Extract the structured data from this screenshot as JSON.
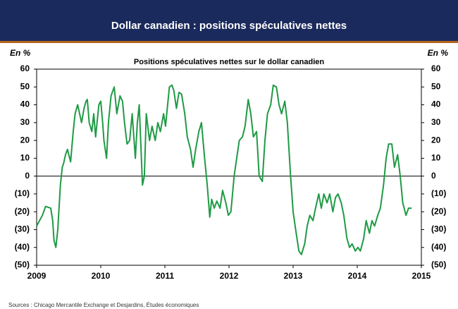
{
  "header": {
    "title": "Dollar canadien : positions spéculatives nettes"
  },
  "chart_data": {
    "type": "line",
    "title": "Positions spéculatives nettes sur le dollar canadien",
    "ylabel": "En %",
    "y2label": "En %",
    "xlim": [
      2009,
      2015
    ],
    "xticks": [
      2009,
      2010,
      2011,
      2012,
      2013,
      2014,
      2015
    ],
    "ylim": [
      -50,
      60
    ],
    "yticks": [
      {
        "value": -50,
        "label": "(50)"
      },
      {
        "value": -40,
        "label": "(40)"
      },
      {
        "value": -30,
        "label": "(30)"
      },
      {
        "value": -20,
        "label": "(20)"
      },
      {
        "value": -10,
        "label": "(10)"
      },
      0,
      10,
      20,
      30,
      40,
      50,
      60
    ],
    "y2lim": [
      -50,
      60
    ],
    "y2ticks": [
      {
        "value": -50,
        "label": "(50)"
      },
      {
        "value": -40,
        "label": "(40)"
      },
      {
        "value": -30,
        "label": "(30)"
      },
      {
        "value": -20,
        "label": "(20)"
      },
      {
        "value": -10,
        "label": "(10)"
      },
      0,
      10,
      20,
      30,
      40,
      50,
      60
    ],
    "zero_line": true,
    "series": [
      {
        "color": "#1f9a45",
        "x": [
          2009.0,
          2009.09,
          2009.14,
          2009.22,
          2009.25,
          2009.27,
          2009.3,
          2009.33,
          2009.37,
          2009.4,
          2009.42,
          2009.45,
          2009.48,
          2009.53,
          2009.57,
          2009.6,
          2009.64,
          2009.67,
          2009.7,
          2009.74,
          2009.77,
          2009.79,
          2009.82,
          2009.86,
          2009.89,
          2009.92,
          2009.97,
          2010.0,
          2010.03,
          2010.05,
          2010.09,
          2010.12,
          2010.16,
          2010.21,
          2010.25,
          2010.3,
          2010.34,
          2010.37,
          2010.41,
          2010.45,
          2010.49,
          2010.54,
          2010.57,
          2010.6,
          2010.65,
          2010.68,
          2010.71,
          2010.76,
          2010.8,
          2010.85,
          2010.89,
          2010.93,
          2010.98,
          2011.01,
          2011.07,
          2011.11,
          2011.14,
          2011.18,
          2011.22,
          2011.26,
          2011.31,
          2011.35,
          2011.4,
          2011.44,
          2011.48,
          2011.53,
          2011.57,
          2011.62,
          2011.66,
          2011.7,
          2011.73,
          2011.77,
          2011.81,
          2011.86,
          2011.9,
          2011.95,
          2011.99,
          2012.03,
          2012.08,
          2012.12,
          2012.16,
          2012.21,
          2012.25,
          2012.3,
          2012.34,
          2012.38,
          2012.43,
          2012.47,
          2012.52,
          2012.56,
          2012.6,
          2012.65,
          2012.69,
          2012.74,
          2012.78,
          2012.82,
          2012.87,
          2012.91,
          2012.96,
          2013.0,
          2013.04,
          2013.09,
          2013.13,
          2013.18,
          2013.22,
          2013.26,
          2013.31,
          2013.35,
          2013.4,
          2013.44,
          2013.48,
          2013.53,
          2013.57,
          2013.62,
          2013.66,
          2013.7,
          2013.75,
          2013.79,
          2013.84,
          2013.88,
          2013.92,
          2013.97,
          2014.01,
          2014.05,
          2014.1,
          2014.14,
          2014.19,
          2014.23,
          2014.27,
          2014.32,
          2014.36,
          2014.41,
          2014.45,
          2014.49,
          2014.54,
          2014.58,
          2014.63,
          2014.67,
          2014.71,
          2014.76,
          2014.8,
          2014.85
        ],
        "values": [
          -28,
          -22,
          -17,
          -18,
          -25,
          -36,
          -40,
          -30,
          -5,
          5,
          7,
          12,
          15,
          8,
          25,
          35,
          40,
          35,
          30,
          38,
          42,
          43,
          30,
          25,
          35,
          22,
          40,
          42,
          30,
          20,
          10,
          30,
          45,
          50,
          35,
          45,
          42,
          30,
          18,
          20,
          35,
          10,
          30,
          40,
          -5,
          0,
          35,
          20,
          28,
          20,
          30,
          25,
          35,
          28,
          50,
          51,
          48,
          38,
          47,
          46,
          35,
          22,
          15,
          5,
          15,
          25,
          30,
          10,
          -5,
          -23,
          -13,
          -18,
          -14,
          -18,
          -8,
          -15,
          -22,
          -20,
          0,
          10,
          20,
          22,
          28,
          43,
          35,
          22,
          25,
          0,
          -3,
          20,
          35,
          40,
          51,
          50,
          40,
          35,
          42,
          30,
          0,
          -20,
          -30,
          -42,
          -44,
          -38,
          -28,
          -22,
          -25,
          -18,
          -10,
          -18,
          -10,
          -15,
          -10,
          -20,
          -12,
          -10,
          -15,
          -22,
          -35,
          -40,
          -38,
          -42,
          -40,
          -42,
          -35,
          -25,
          -32,
          -25,
          -28,
          -22,
          -18,
          -5,
          10,
          18,
          18,
          5,
          12,
          0,
          -15,
          -22,
          -18,
          -18
        ]
      }
    ]
  },
  "footer": {
    "source": "Sources : Chicago Mercantile Exchange et Desjardins, Études économiques"
  }
}
